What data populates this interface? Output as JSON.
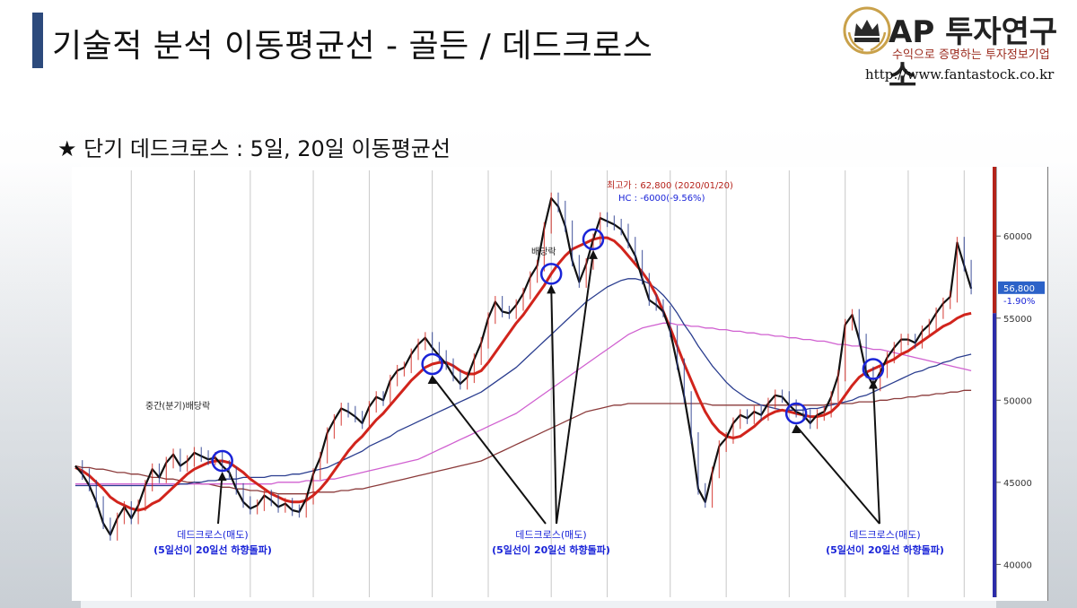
{
  "page": {
    "title": "기술적 분석 이동평균선 - 골든 / 데드크로스",
    "subtitle": "★ 단기 데드크로스 : 5일, 20일 이동평균선"
  },
  "logo": {
    "name": "AP 투자연구소",
    "tagline": "수익으로 증명하는 투자정보기업",
    "url": "http://www.fantastock.co.kr",
    "emblem": "crown-laurel-emblem",
    "accent": "#c9a14a"
  },
  "colors": {
    "price": "#111111",
    "ma20": "#d1241c",
    "ma60": "#2a3d8f",
    "ma120": "#d060d0",
    "ma240": "#8b3a3a",
    "marker": "#1a24d8",
    "label": "#1a24d8"
  },
  "chart_data": {
    "type": "line",
    "y_ticks": [
      "60000",
      "55000",
      "50000",
      "45000",
      "40000"
    ],
    "ylim": [
      38000,
      64000
    ],
    "grid": true,
    "current_price": "56,800",
    "current_change": "-1.90%",
    "annotations": {
      "high": "최고가 : 62,800 (2020/01/20)",
      "hc": "HC : -6000(-9.56%)",
      "dividend1": "중간(분기)배당락",
      "dividend2": "배당락"
    },
    "series": [
      {
        "values": [
          46000,
          45500,
          44800,
          43800,
          42500,
          41800,
          42800,
          43500,
          42800,
          43600,
          44800,
          45800,
          45300,
          46200,
          46700,
          46000,
          46300,
          46800,
          46600,
          46400,
          46500,
          46000,
          45600,
          44600,
          43800,
          43400,
          43600,
          44200,
          43900,
          43500,
          43700,
          43300,
          43200,
          44000,
          45500,
          46500,
          48000,
          48800,
          49500,
          49300,
          49000,
          48600,
          49600,
          50200,
          50000,
          51200,
          51800,
          52000,
          52800,
          53400,
          53800,
          53200,
          52700,
          52200,
          51500,
          51000,
          51400,
          52500,
          53500,
          55000,
          56000,
          55400,
          55300,
          55800,
          56500,
          57500,
          58200,
          60500,
          62300,
          61800,
          60600,
          58500,
          57200,
          58300,
          59800,
          61100,
          60900,
          60700,
          60400,
          59600,
          58800,
          57400,
          56100,
          55800,
          55400,
          54200,
          52200,
          50200,
          47700,
          44600,
          43800,
          45600,
          47200,
          47700,
          48600,
          49100,
          48900,
          49300,
          49100,
          49800,
          50300,
          50200,
          49700,
          49300,
          49100,
          48600,
          49100,
          49300,
          50200,
          51500,
          54600,
          55200,
          53700,
          51700,
          50900,
          51700,
          52600,
          53200,
          53700,
          53700,
          53500,
          54200,
          54600,
          55300,
          55900,
          56300,
          59600,
          58200,
          56800
        ]
      },
      {
        "values": [
          45900,
          45700,
          45400,
          45000,
          44600,
          44100,
          43800,
          43600,
          43400,
          43300,
          43400,
          43700,
          43900,
          44300,
          44700,
          45100,
          45500,
          45800,
          46000,
          46200,
          46300,
          46300,
          46200,
          45900,
          45600,
          45200,
          44900,
          44600,
          44300,
          44100,
          43900,
          43800,
          43800,
          43900,
          44200,
          44600,
          45100,
          45700,
          46300,
          46900,
          47400,
          47800,
          48300,
          48800,
          49200,
          49700,
          50200,
          50700,
          51200,
          51600,
          52000,
          52200,
          52300,
          52300,
          52100,
          51800,
          51600,
          51600,
          51800,
          52300,
          52900,
          53500,
          54100,
          54700,
          55200,
          55800,
          56400,
          57000,
          57700,
          58300,
          58800,
          59200,
          59400,
          59600,
          59800,
          59900,
          59900,
          59700,
          59300,
          58800,
          58300,
          57800,
          57200,
          56400,
          55400,
          54400,
          53300,
          52200,
          51200,
          50200,
          49300,
          48600,
          48100,
          47800,
          47700,
          47800,
          48100,
          48400,
          48800,
          49100,
          49300,
          49400,
          49300,
          49200,
          49100,
          49000,
          49000,
          49100,
          49300,
          49700,
          50300,
          50900,
          51400,
          51700,
          51900,
          52100,
          52300,
          52500,
          52800,
          53000,
          53300,
          53600,
          53900,
          54200,
          54500,
          54700,
          55000,
          55200,
          55300
        ]
      },
      {
        "values": [
          44800,
          44800,
          44800,
          44800,
          44800,
          44800,
          44800,
          44800,
          44800,
          44800,
          44800,
          44800,
          44800,
          44800,
          44800,
          44900,
          44900,
          45000,
          45000,
          45100,
          45100,
          45200,
          45200,
          45200,
          45300,
          45300,
          45300,
          45300,
          45400,
          45400,
          45400,
          45500,
          45500,
          45600,
          45700,
          45800,
          45900,
          46100,
          46300,
          46500,
          46700,
          46900,
          47200,
          47400,
          47600,
          47800,
          48100,
          48300,
          48500,
          48700,
          48900,
          49100,
          49300,
          49500,
          49700,
          49900,
          50100,
          50300,
          50500,
          50800,
          51100,
          51400,
          51700,
          52000,
          52400,
          52800,
          53200,
          53600,
          54000,
          54400,
          54800,
          55200,
          55600,
          56000,
          56300,
          56600,
          56900,
          57100,
          57300,
          57400,
          57400,
          57300,
          57100,
          56800,
          56400,
          55900,
          55300,
          54600,
          54000,
          53300,
          52700,
          52100,
          51600,
          51100,
          50700,
          50400,
          50100,
          49900,
          49700,
          49600,
          49500,
          49400,
          49400,
          49400,
          49400,
          49500,
          49500,
          49600,
          49700,
          49800,
          49900,
          50000,
          50200,
          50300,
          50500,
          50700,
          50900,
          51100,
          51300,
          51500,
          51700,
          51800,
          52000,
          52100,
          52300,
          52400,
          52600,
          52700,
          52800
        ]
      },
      {
        "values": [
          44900,
          44900,
          44900,
          44900,
          44900,
          44900,
          44900,
          44900,
          44900,
          44900,
          44900,
          44900,
          44900,
          44900,
          44900,
          44900,
          44900,
          44900,
          44900,
          44900,
          44900,
          44900,
          44900,
          44900,
          44900,
          44900,
          44900,
          44900,
          44900,
          45000,
          45000,
          45000,
          45000,
          45100,
          45100,
          45100,
          45200,
          45200,
          45300,
          45400,
          45500,
          45600,
          45700,
          45800,
          45900,
          46000,
          46100,
          46200,
          46300,
          46400,
          46600,
          46800,
          47000,
          47200,
          47400,
          47600,
          47800,
          48000,
          48200,
          48400,
          48600,
          48800,
          49000,
          49200,
          49500,
          49800,
          50100,
          50400,
          50700,
          51000,
          51300,
          51600,
          51900,
          52200,
          52500,
          52800,
          53100,
          53400,
          53700,
          54000,
          54200,
          54400,
          54500,
          54600,
          54700,
          54700,
          54600,
          54600,
          54500,
          54500,
          54400,
          54400,
          54300,
          54300,
          54200,
          54200,
          54100,
          54100,
          54000,
          54000,
          53900,
          53900,
          53800,
          53800,
          53700,
          53700,
          53600,
          53600,
          53500,
          53400,
          53400,
          53300,
          53300,
          53200,
          53100,
          53100,
          53000,
          52900,
          52800,
          52700,
          52600,
          52500,
          52400,
          52300,
          52200,
          52100,
          52000,
          51900,
          51800
        ]
      },
      {
        "values": [
          46000,
          45900,
          45900,
          45800,
          45800,
          45700,
          45600,
          45600,
          45500,
          45500,
          45400,
          45300,
          45300,
          45200,
          45200,
          45100,
          45000,
          45000,
          44900,
          44900,
          44800,
          44700,
          44700,
          44600,
          44600,
          44500,
          44500,
          44400,
          44400,
          44300,
          44300,
          44300,
          44300,
          44300,
          44400,
          44400,
          44400,
          44400,
          44500,
          44500,
          44600,
          44600,
          44700,
          44800,
          44900,
          45000,
          45100,
          45200,
          45300,
          45400,
          45500,
          45600,
          45700,
          45800,
          45900,
          46000,
          46100,
          46200,
          46300,
          46500,
          46700,
          46900,
          47100,
          47300,
          47500,
          47700,
          47900,
          48100,
          48300,
          48500,
          48700,
          48900,
          49100,
          49300,
          49400,
          49500,
          49600,
          49700,
          49700,
          49800,
          49800,
          49800,
          49800,
          49800,
          49800,
          49800,
          49800,
          49800,
          49800,
          49800,
          49800,
          49700,
          49700,
          49700,
          49700,
          49700,
          49700,
          49700,
          49700,
          49700,
          49700,
          49700,
          49700,
          49700,
          49700,
          49700,
          49700,
          49700,
          49800,
          49800,
          49800,
          49800,
          49900,
          49900,
          49900,
          50000,
          50000,
          50100,
          50100,
          50200,
          50200,
          50300,
          50300,
          50400,
          50400,
          50500,
          50500,
          50600,
          50600
        ]
      }
    ]
  },
  "callouts": [
    {
      "line1": "데드크로스(매도)",
      "line2": "(5일선이 20일선 하향돌파)"
    },
    {
      "line1": "데드크로스(매도)",
      "line2": "(5일선이 20일선 하향돌파)"
    },
    {
      "line1": "데드크로스(매도)",
      "line2": "(5일선이 20일선 하향돌파)"
    }
  ]
}
